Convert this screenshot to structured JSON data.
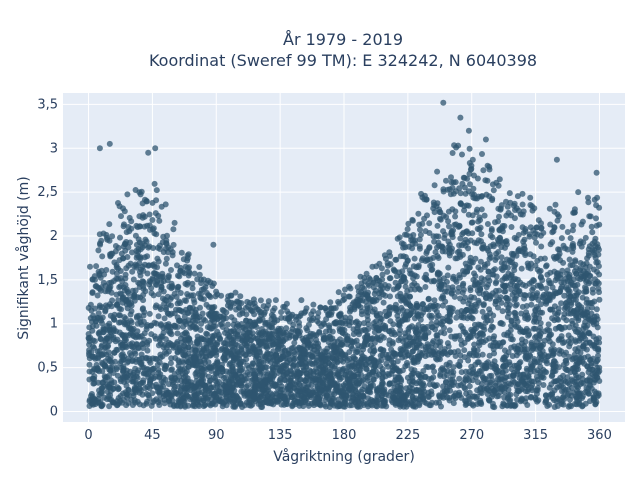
{
  "chart_data": {
    "type": "scatter",
    "title": "År 1979 - 2019",
    "subtitle": "Koordinat (Sweref 99 TM): E 324242, N 6040398",
    "xlabel": "Vågriktning (grader)",
    "ylabel": "Signifikant våghöjd (m)",
    "xlim": [
      -18,
      378
    ],
    "ylim": [
      -0.12,
      3.63
    ],
    "xticks": [
      0,
      45,
      90,
      135,
      180,
      225,
      270,
      315,
      360
    ],
    "xtick_labels": [
      "0",
      "45",
      "90",
      "135",
      "180",
      "225",
      "270",
      "315",
      "360"
    ],
    "yticks": [
      0,
      0.5,
      1,
      1.5,
      2,
      2.5,
      3,
      3.5
    ],
    "ytick_labels": [
      "0",
      "0,5",
      "1",
      "1,5",
      "2",
      "2,5",
      "3",
      "3,5"
    ],
    "grid": true,
    "legend": "none",
    "marker_color": "#2f5670",
    "marker_opacity": 0.75,
    "envelope": [
      {
        "x": 0,
        "y": 1.75
      },
      {
        "x": 10,
        "y": 2.2
      },
      {
        "x": 20,
        "y": 2.45
      },
      {
        "x": 30,
        "y": 2.6
      },
      {
        "x": 40,
        "y": 2.7
      },
      {
        "x": 45,
        "y": 2.75
      },
      {
        "x": 50,
        "y": 2.6
      },
      {
        "x": 60,
        "y": 2.2
      },
      {
        "x": 70,
        "y": 1.85
      },
      {
        "x": 80,
        "y": 1.65
      },
      {
        "x": 90,
        "y": 1.55
      },
      {
        "x": 100,
        "y": 1.45
      },
      {
        "x": 110,
        "y": 1.35
      },
      {
        "x": 120,
        "y": 1.3
      },
      {
        "x": 135,
        "y": 1.25
      },
      {
        "x": 150,
        "y": 1.22
      },
      {
        "x": 165,
        "y": 1.25
      },
      {
        "x": 180,
        "y": 1.4
      },
      {
        "x": 195,
        "y": 1.6
      },
      {
        "x": 210,
        "y": 1.85
      },
      {
        "x": 225,
        "y": 2.2
      },
      {
        "x": 240,
        "y": 2.75
      },
      {
        "x": 255,
        "y": 3.1
      },
      {
        "x": 265,
        "y": 3.2
      },
      {
        "x": 275,
        "y": 3.05
      },
      {
        "x": 290,
        "y": 2.75
      },
      {
        "x": 305,
        "y": 2.6
      },
      {
        "x": 320,
        "y": 2.45
      },
      {
        "x": 335,
        "y": 2.35
      },
      {
        "x": 350,
        "y": 2.45
      },
      {
        "x": 360,
        "y": 2.7
      }
    ],
    "outliers": [
      {
        "x": 8,
        "y": 3.0
      },
      {
        "x": 15,
        "y": 3.05
      },
      {
        "x": 42,
        "y": 2.95
      },
      {
        "x": 47,
        "y": 3.0
      },
      {
        "x": 250,
        "y": 3.52
      },
      {
        "x": 262,
        "y": 3.35
      },
      {
        "x": 268,
        "y": 3.2
      },
      {
        "x": 280,
        "y": 3.1
      },
      {
        "x": 330,
        "y": 2.87
      },
      {
        "x": 358,
        "y": 2.72
      },
      {
        "x": 345,
        "y": 2.5
      },
      {
        "x": 88,
        "y": 1.9
      },
      {
        "x": 132,
        "y": 1.27
      },
      {
        "x": 150,
        "y": 1.27
      },
      {
        "x": 200,
        "y": 1.65
      }
    ]
  }
}
